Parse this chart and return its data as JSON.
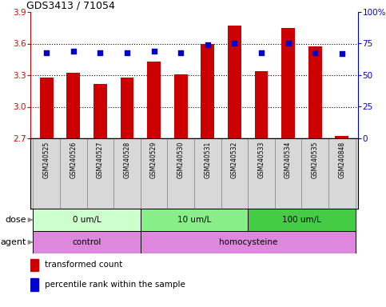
{
  "title": "GDS3413 / 71054",
  "samples": [
    "GSM240525",
    "GSM240526",
    "GSM240527",
    "GSM240528",
    "GSM240529",
    "GSM240530",
    "GSM240531",
    "GSM240532",
    "GSM240533",
    "GSM240534",
    "GSM240535",
    "GSM240848"
  ],
  "transformed_count": [
    3.28,
    3.32,
    3.22,
    3.275,
    3.43,
    3.31,
    3.595,
    3.77,
    3.34,
    3.75,
    3.57,
    2.72
  ],
  "percentile_rank": [
    68,
    69,
    68,
    68,
    69,
    68,
    74,
    75,
    68,
    75,
    68,
    67
  ],
  "bar_color": "#cc0000",
  "dot_color": "#0000cc",
  "ylim_left": [
    2.7,
    3.9
  ],
  "ylim_right": [
    0,
    100
  ],
  "yticks_left": [
    2.7,
    3.0,
    3.3,
    3.6,
    3.9
  ],
  "yticks_right": [
    0,
    25,
    50,
    75,
    100
  ],
  "ytick_labels_left": [
    "2.7",
    "3.0",
    "3.3",
    "3.6",
    "3.9"
  ],
  "ytick_labels_right": [
    "0",
    "25",
    "50",
    "75",
    "100%"
  ],
  "hlines": [
    3.0,
    3.3,
    3.6
  ],
  "dose_groups": [
    {
      "label": "0 um/L",
      "start": 0,
      "end": 4,
      "color": "#ccffcc"
    },
    {
      "label": "10 um/L",
      "start": 4,
      "end": 8,
      "color": "#88ee88"
    },
    {
      "label": "100 um/L",
      "start": 8,
      "end": 12,
      "color": "#44cc44"
    }
  ],
  "agent_groups": [
    {
      "label": "control",
      "start": 0,
      "end": 4,
      "color": "#dd88dd"
    },
    {
      "label": "homocysteine",
      "start": 4,
      "end": 12,
      "color": "#dd88dd"
    }
  ],
  "legend_bar_label": "transformed count",
  "legend_dot_label": "percentile rank within the sample",
  "dose_label": "dose",
  "agent_label": "agent",
  "bar_bottom": 2.7,
  "sample_bg": "#d8d8d8",
  "plot_bg": "#ffffff"
}
